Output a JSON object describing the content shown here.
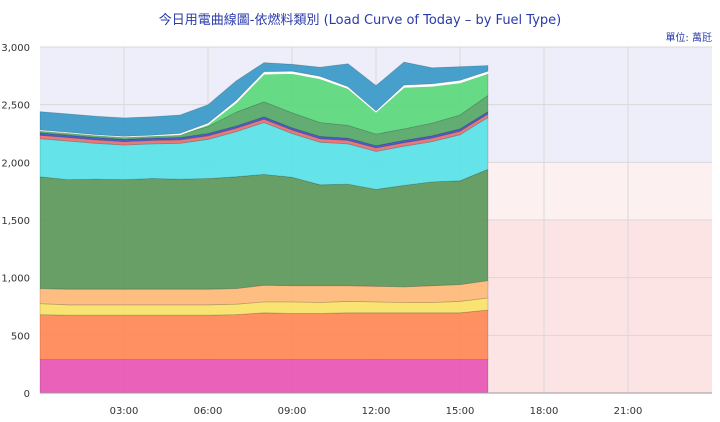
{
  "chart_data": {
    "type": "area",
    "title": "今日用電曲線圖-依燃料類別 (Load Curve of Today – by Fuel Type)",
    "unit": "單位: 萬瓩",
    "xlabel": "",
    "ylabel": "",
    "ylim": [
      0,
      3000
    ],
    "xlim_hours": [
      0,
      24
    ],
    "x_tick_labels": [
      "03:00",
      "06:00",
      "09:00",
      "12:00",
      "15:00",
      "18:00",
      "21:00"
    ],
    "y_tick_labels": [
      "0",
      "500",
      "1,000",
      "1,500",
      "2,000",
      "2,500",
      "3,000"
    ],
    "y_ticks": [
      0,
      500,
      1000,
      1500,
      2000,
      2500,
      3000
    ],
    "grid": true,
    "background_bands": [
      {
        "from": 0,
        "to": 1500,
        "region": "future",
        "color": "#fde4e4"
      },
      {
        "from": 1500,
        "to": 2000,
        "region": "future",
        "color": "#fdf0f0"
      },
      {
        "from": 2000,
        "to": 3000,
        "region": "all",
        "color": "#eeeefa"
      }
    ],
    "x": [
      0,
      1,
      2,
      3,
      4,
      5,
      6,
      7,
      8,
      9,
      10,
      11,
      12,
      13,
      14,
      15,
      16
    ],
    "series": [
      {
        "color": "#e858b5",
        "values": [
          290,
          290,
          290,
          290,
          290,
          290,
          290,
          290,
          290,
          290,
          290,
          290,
          290,
          290,
          290,
          290,
          290
        ]
      },
      {
        "color": "#ff8a5a",
        "values": [
          390,
          385,
          385,
          385,
          385,
          385,
          385,
          390,
          405,
          400,
          400,
          405,
          405,
          405,
          405,
          405,
          430
        ]
      },
      {
        "color": "#f9e26a",
        "values": [
          95,
          90,
          90,
          90,
          90,
          90,
          90,
          90,
          95,
          100,
          95,
          100,
          95,
          90,
          90,
          100,
          105
        ]
      },
      {
        "color": "#ffbb7a",
        "values": [
          130,
          135,
          135,
          135,
          135,
          135,
          135,
          135,
          145,
          140,
          145,
          135,
          135,
          135,
          145,
          145,
          150
        ]
      },
      {
        "color": "#5f9a5f",
        "values": [
          970,
          950,
          955,
          950,
          960,
          955,
          960,
          970,
          960,
          940,
          875,
          880,
          840,
          880,
          900,
          900,
          965
        ]
      },
      {
        "color": "#5ce3e8",
        "values": [
          330,
          335,
          310,
          300,
          300,
          310,
          340,
          390,
          450,
          380,
          370,
          350,
          330,
          340,
          350,
          400,
          450
        ]
      },
      {
        "color": "#e57373",
        "values": [
          30,
          30,
          30,
          30,
          30,
          30,
          30,
          30,
          30,
          30,
          30,
          30,
          30,
          30,
          30,
          30,
          30
        ]
      },
      {
        "color": "#4055c8",
        "values": [
          20,
          20,
          20,
          20,
          20,
          20,
          20,
          20,
          20,
          20,
          20,
          20,
          20,
          20,
          20,
          20,
          20
        ]
      },
      {
        "color": "#5aaa6a",
        "values": [
          20,
          20,
          20,
          20,
          20,
          25,
          60,
          120,
          130,
          130,
          120,
          110,
          100,
          100,
          110,
          120,
          140
        ]
      },
      {
        "color": "#5fd87f",
        "values": [
          0,
          0,
          0,
          0,
          0,
          0,
          15,
          80,
          240,
          340,
          380,
          320,
          190,
          360,
          320,
          280,
          190
        ]
      },
      {
        "color": "#ffffff",
        "values": [
          5,
          5,
          5,
          5,
          5,
          10,
          15,
          20,
          20,
          20,
          20,
          15,
          10,
          20,
          20,
          20,
          20
        ]
      },
      {
        "color": "#3d9ac8",
        "values": [
          160,
          160,
          160,
          160,
          160,
          160,
          160,
          170,
          80,
          60,
          80,
          200,
          220,
          200,
          140,
          120,
          50
        ]
      }
    ]
  }
}
